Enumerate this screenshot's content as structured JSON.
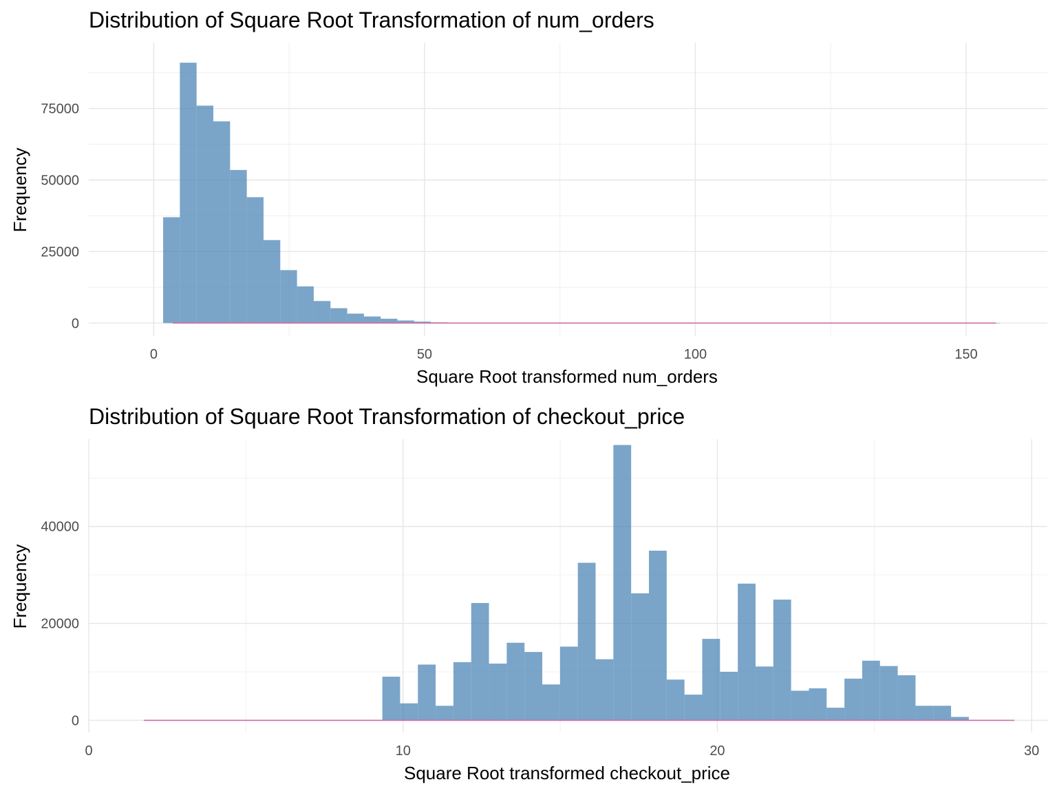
{
  "chart_data": [
    {
      "type": "bar",
      "title": "Distribution of Square Root Transformation of num_orders",
      "xlabel": "Square Root transformed num_orders",
      "ylabel": "Frequency",
      "xlim": [
        -12,
        165
      ],
      "ylim": [
        -4500,
        98000
      ],
      "x_ticks": [
        0,
        50,
        100,
        150
      ],
      "y_ticks": [
        0,
        25000,
        50000,
        75000
      ],
      "grid": true,
      "bar_color": "#4682B4",
      "bar_opacity": 0.72,
      "line_color": "#D16BA5",
      "bin_start": 1.73,
      "bin_width": 3.09,
      "values": [
        37000,
        91000,
        76000,
        70500,
        53500,
        44000,
        29000,
        18500,
        12800,
        7700,
        5200,
        3300,
        2300,
        1500,
        900,
        500,
        250,
        120,
        60,
        30,
        15,
        8,
        5,
        3,
        2,
        1,
        1,
        1,
        1,
        1,
        1,
        1,
        1,
        1,
        1,
        1,
        1,
        1,
        1,
        1,
        1,
        1,
        1,
        1,
        1,
        1,
        1,
        1,
        1,
        1
      ],
      "overlay_line": {
        "x_start": 3.5,
        "x_end": 155.5,
        "y": 0
      }
    },
    {
      "type": "bar",
      "title": "Distribution of Square Root Transformation of checkout_price",
      "xlabel": "Square Root transformed checkout_price",
      "ylabel": "Frequency",
      "xlim": [
        0,
        30.5
      ],
      "ylim": [
        -2500,
        58000
      ],
      "x_ticks": [
        0,
        10,
        20,
        30
      ],
      "y_ticks": [
        0,
        20000,
        40000
      ],
      "grid": true,
      "bar_color": "#4682B4",
      "bar_opacity": 0.72,
      "line_color": "#D16BA5",
      "bin_start": 9.34,
      "bin_width": 0.5655,
      "values": [
        9000,
        3500,
        11500,
        3000,
        12000,
        24200,
        11700,
        16000,
        14100,
        7400,
        15200,
        32500,
        12600,
        56800,
        26200,
        35000,
        8400,
        5300,
        16800,
        10000,
        28200,
        11100,
        24900,
        6100,
        6600,
        2600,
        8600,
        12300,
        11200,
        9300,
        3000,
        3000,
        700
      ],
      "overlay_line": {
        "x_start": 1.75,
        "x_end": 29.45,
        "y": 0
      }
    }
  ]
}
